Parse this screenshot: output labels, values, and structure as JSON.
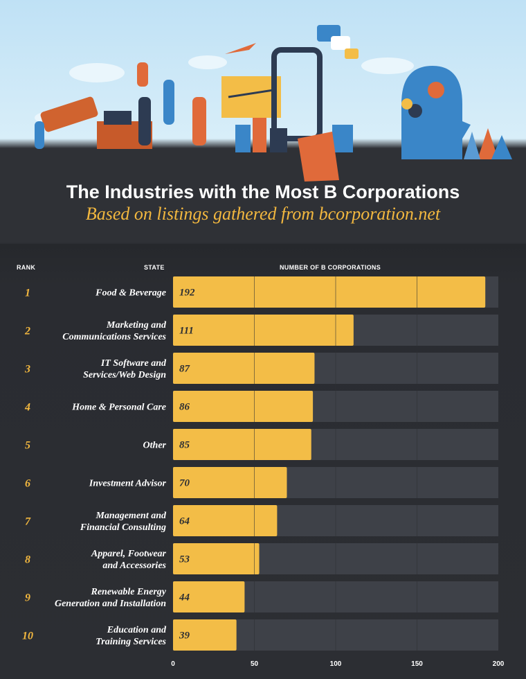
{
  "header": {
    "title": "The Industries with the Most B Corporations",
    "subtitle": "Based on listings gathered from bcorporation.net"
  },
  "columns": {
    "rank": "RANK",
    "state": "STATE",
    "number": "NUMBER OF B CORPORATIONS"
  },
  "colors": {
    "bar": "#f3bd47",
    "track": "#3e4148",
    "background": "#2c2e33",
    "accent": "#f3b83f"
  },
  "chart_data": {
    "type": "bar",
    "orientation": "horizontal",
    "title": "The Industries with the Most B Corporations",
    "subtitle": "Based on listings gathered from bcorporation.net",
    "xlabel": "NUMBER OF B CORPORATIONS",
    "ylabel": "STATE",
    "ranks": [
      1,
      2,
      3,
      4,
      5,
      6,
      7,
      8,
      9,
      10
    ],
    "categories": [
      [
        "Food & Beverage"
      ],
      [
        "Marketing and",
        "Communications Services"
      ],
      [
        "IT Software and",
        "Services/Web Design"
      ],
      [
        "Home & Personal Care"
      ],
      [
        "Other"
      ],
      [
        "Investment Advisor"
      ],
      [
        "Management and",
        "Financial Consulting"
      ],
      [
        "Apparel, Footwear",
        "and Accessories"
      ],
      [
        "Renewable Energy",
        "Generation and Installation"
      ],
      [
        "Education and",
        "Training Services"
      ]
    ],
    "values": [
      192,
      111,
      87,
      86,
      85,
      70,
      64,
      53,
      44,
      39
    ],
    "xlim": [
      0,
      200
    ],
    "xticks": [
      0,
      50,
      100,
      150,
      200
    ],
    "grid": true
  }
}
